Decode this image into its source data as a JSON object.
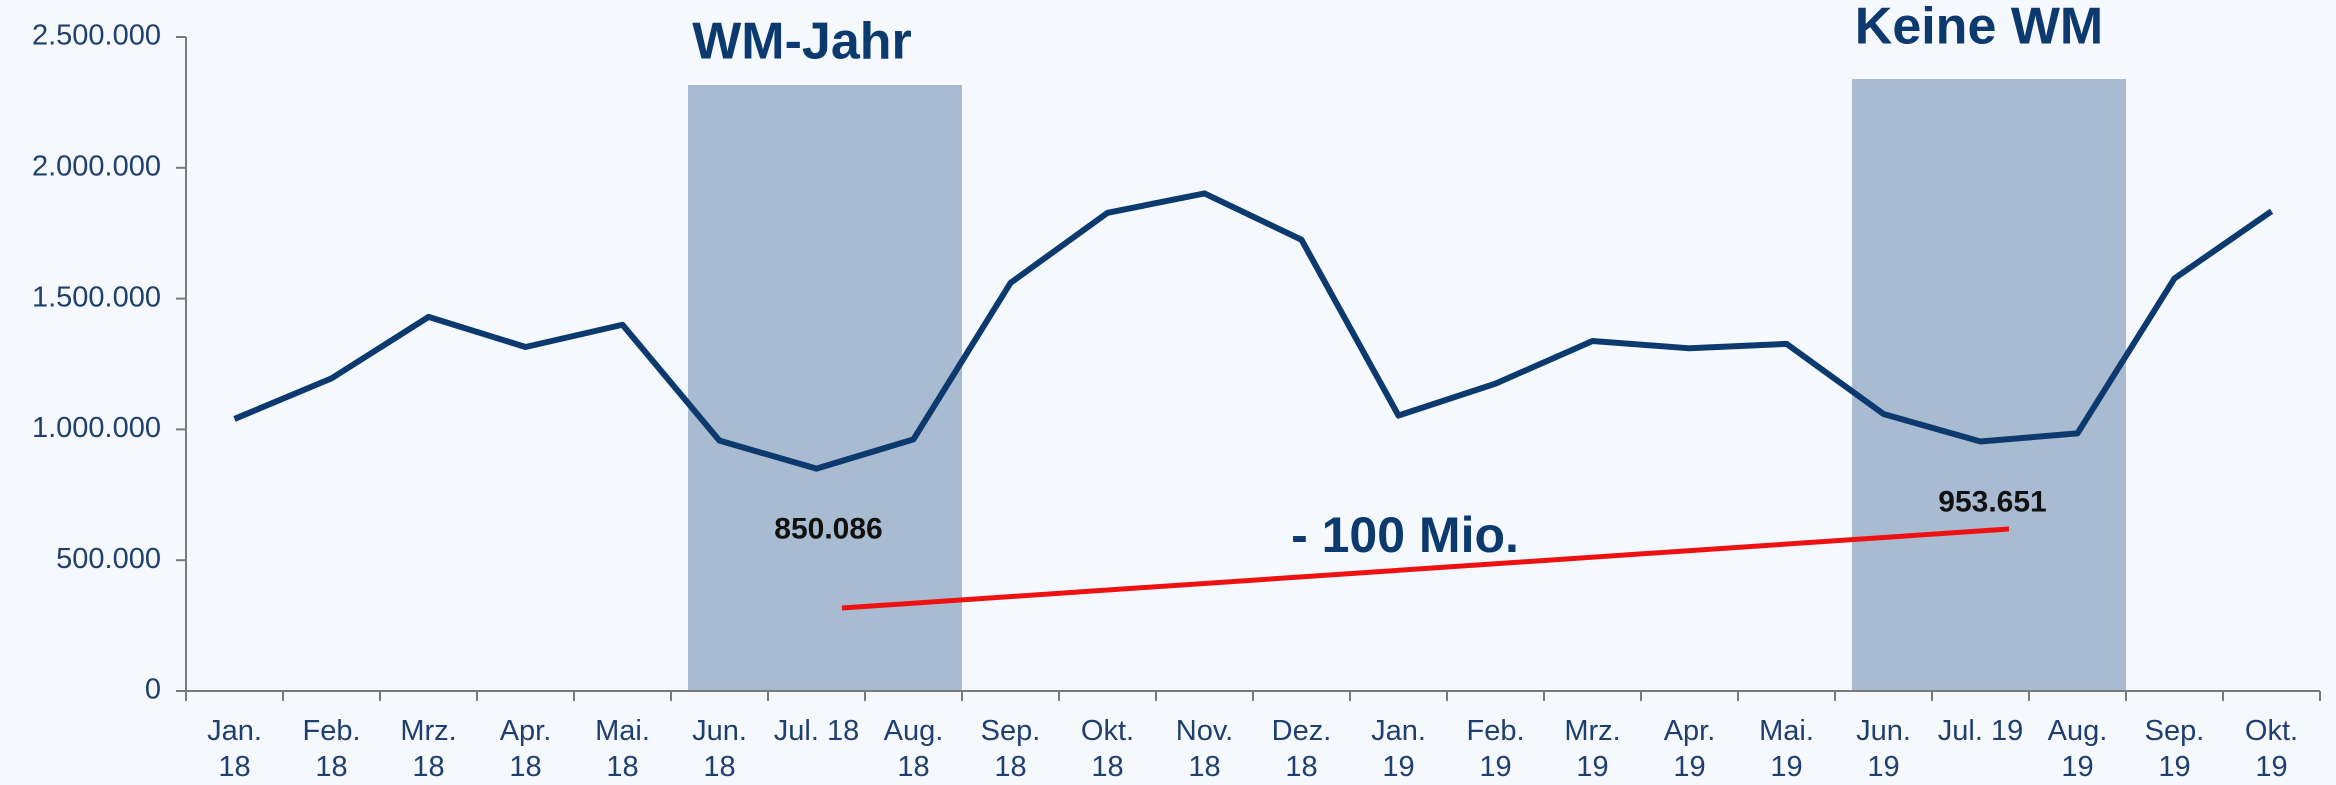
{
  "chart_data": {
    "type": "line",
    "categories": [
      "Jan.\n18",
      "Feb.\n18",
      "Mrz.\n18",
      "Apr.\n18",
      "Mai.\n18",
      "Jun.\n18",
      "Jul. 18",
      "Aug.\n18",
      "Sep.\n18",
      "Okt.\n18",
      "Nov.\n18",
      "Dez.\n18",
      "Jan.\n19",
      "Feb.\n19",
      "Mrz.\n19",
      "Apr.\n19",
      "Mai.\n19",
      "Jun.\n19",
      "Jul. 19",
      "Aug.\n19",
      "Sep.\n19",
      "Okt.\n19"
    ],
    "series": [
      {
        "name": "Werte",
        "color": "#0c3a6e",
        "values": [
          1040000,
          1195000,
          1430000,
          1315000,
          1400000,
          957000,
          850086,
          962000,
          1560000,
          1828000,
          1902000,
          1725000,
          1053000,
          1175000,
          1338000,
          1310000,
          1327000,
          1059000,
          953651,
          985000,
          1577000,
          1834000
        ],
        "value_labels": [
          null,
          null,
          null,
          null,
          null,
          null,
          "850.086",
          null,
          null,
          null,
          null,
          null,
          null,
          null,
          null,
          null,
          null,
          null,
          "953.651",
          null,
          null,
          null
        ]
      }
    ],
    "ylim": [
      0,
      2500000
    ],
    "yticks": [
      0,
      {
        "value": 500000,
        "label": "500.000"
      },
      {
        "value": 1000000,
        "label": "1.000.000"
      },
      {
        "value": 1500000,
        "label": "1.500.000"
      },
      {
        "value": 2000000,
        "label": "2.000.000"
      },
      {
        "value": 2500000,
        "label": "2.500.000"
      }
    ],
    "highlights": [
      {
        "label": "WM-Jahr",
        "color": "#a9bbd1"
      },
      {
        "label": "Keine WM",
        "color": "#a9bbd1"
      }
    ],
    "annotation": "- 100 Mio.",
    "trend_color": "#ee1111"
  }
}
